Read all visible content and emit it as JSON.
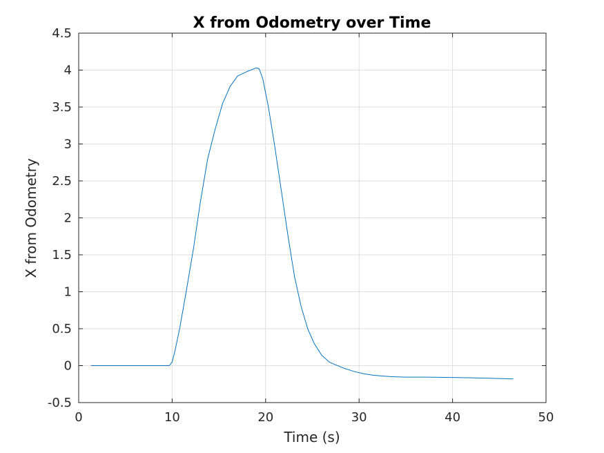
{
  "chart_data": {
    "type": "line",
    "title": "X from Odometry over Time",
    "xlabel": "Time (s)",
    "ylabel": "X from Odometry",
    "xlim": [
      0,
      50
    ],
    "ylim": [
      -0.5,
      4.5
    ],
    "xticks": [
      0,
      10,
      20,
      30,
      40,
      50
    ],
    "yticks": [
      -0.5,
      0,
      0.5,
      1,
      1.5,
      2,
      2.5,
      3,
      3.5,
      4,
      4.5
    ],
    "xtick_labels": [
      "0",
      "10",
      "20",
      "30",
      "40",
      "50"
    ],
    "ytick_labels": [
      "-0.5",
      "0",
      "0.5",
      "1",
      "1.5",
      "2",
      "2.5",
      "3",
      "3.5",
      "4",
      "4.5"
    ],
    "grid": true,
    "line_color": "#0072BD",
    "series": [
      {
        "x": [
          1.3,
          3,
          5,
          7,
          9,
          9.7,
          10.0,
          10.3,
          10.8,
          11.5,
          12.3,
          13.0,
          13.8,
          14.6,
          15.4,
          16.2,
          17.0,
          18.0,
          19.0,
          19.3,
          19.7,
          20.3,
          21.0,
          21.7,
          22.4,
          23.1,
          23.8,
          24.5,
          25.2,
          26.0,
          26.8,
          27.5,
          28.5,
          29.5,
          30.5,
          31.5,
          32.5,
          33.5,
          35.0,
          37.0,
          40.0,
          42.0,
          44.0,
          46.5
        ],
        "y": [
          0.0,
          0.0,
          0.0,
          0.0,
          0.0,
          0.0,
          0.05,
          0.2,
          0.5,
          1.0,
          1.6,
          2.2,
          2.8,
          3.2,
          3.55,
          3.78,
          3.92,
          3.98,
          4.03,
          4.02,
          3.88,
          3.5,
          2.95,
          2.35,
          1.75,
          1.2,
          0.8,
          0.5,
          0.3,
          0.14,
          0.05,
          0.01,
          -0.04,
          -0.08,
          -0.11,
          -0.13,
          -0.14,
          -0.15,
          -0.155,
          -0.155,
          -0.16,
          -0.165,
          -0.17,
          -0.18
        ]
      }
    ]
  }
}
